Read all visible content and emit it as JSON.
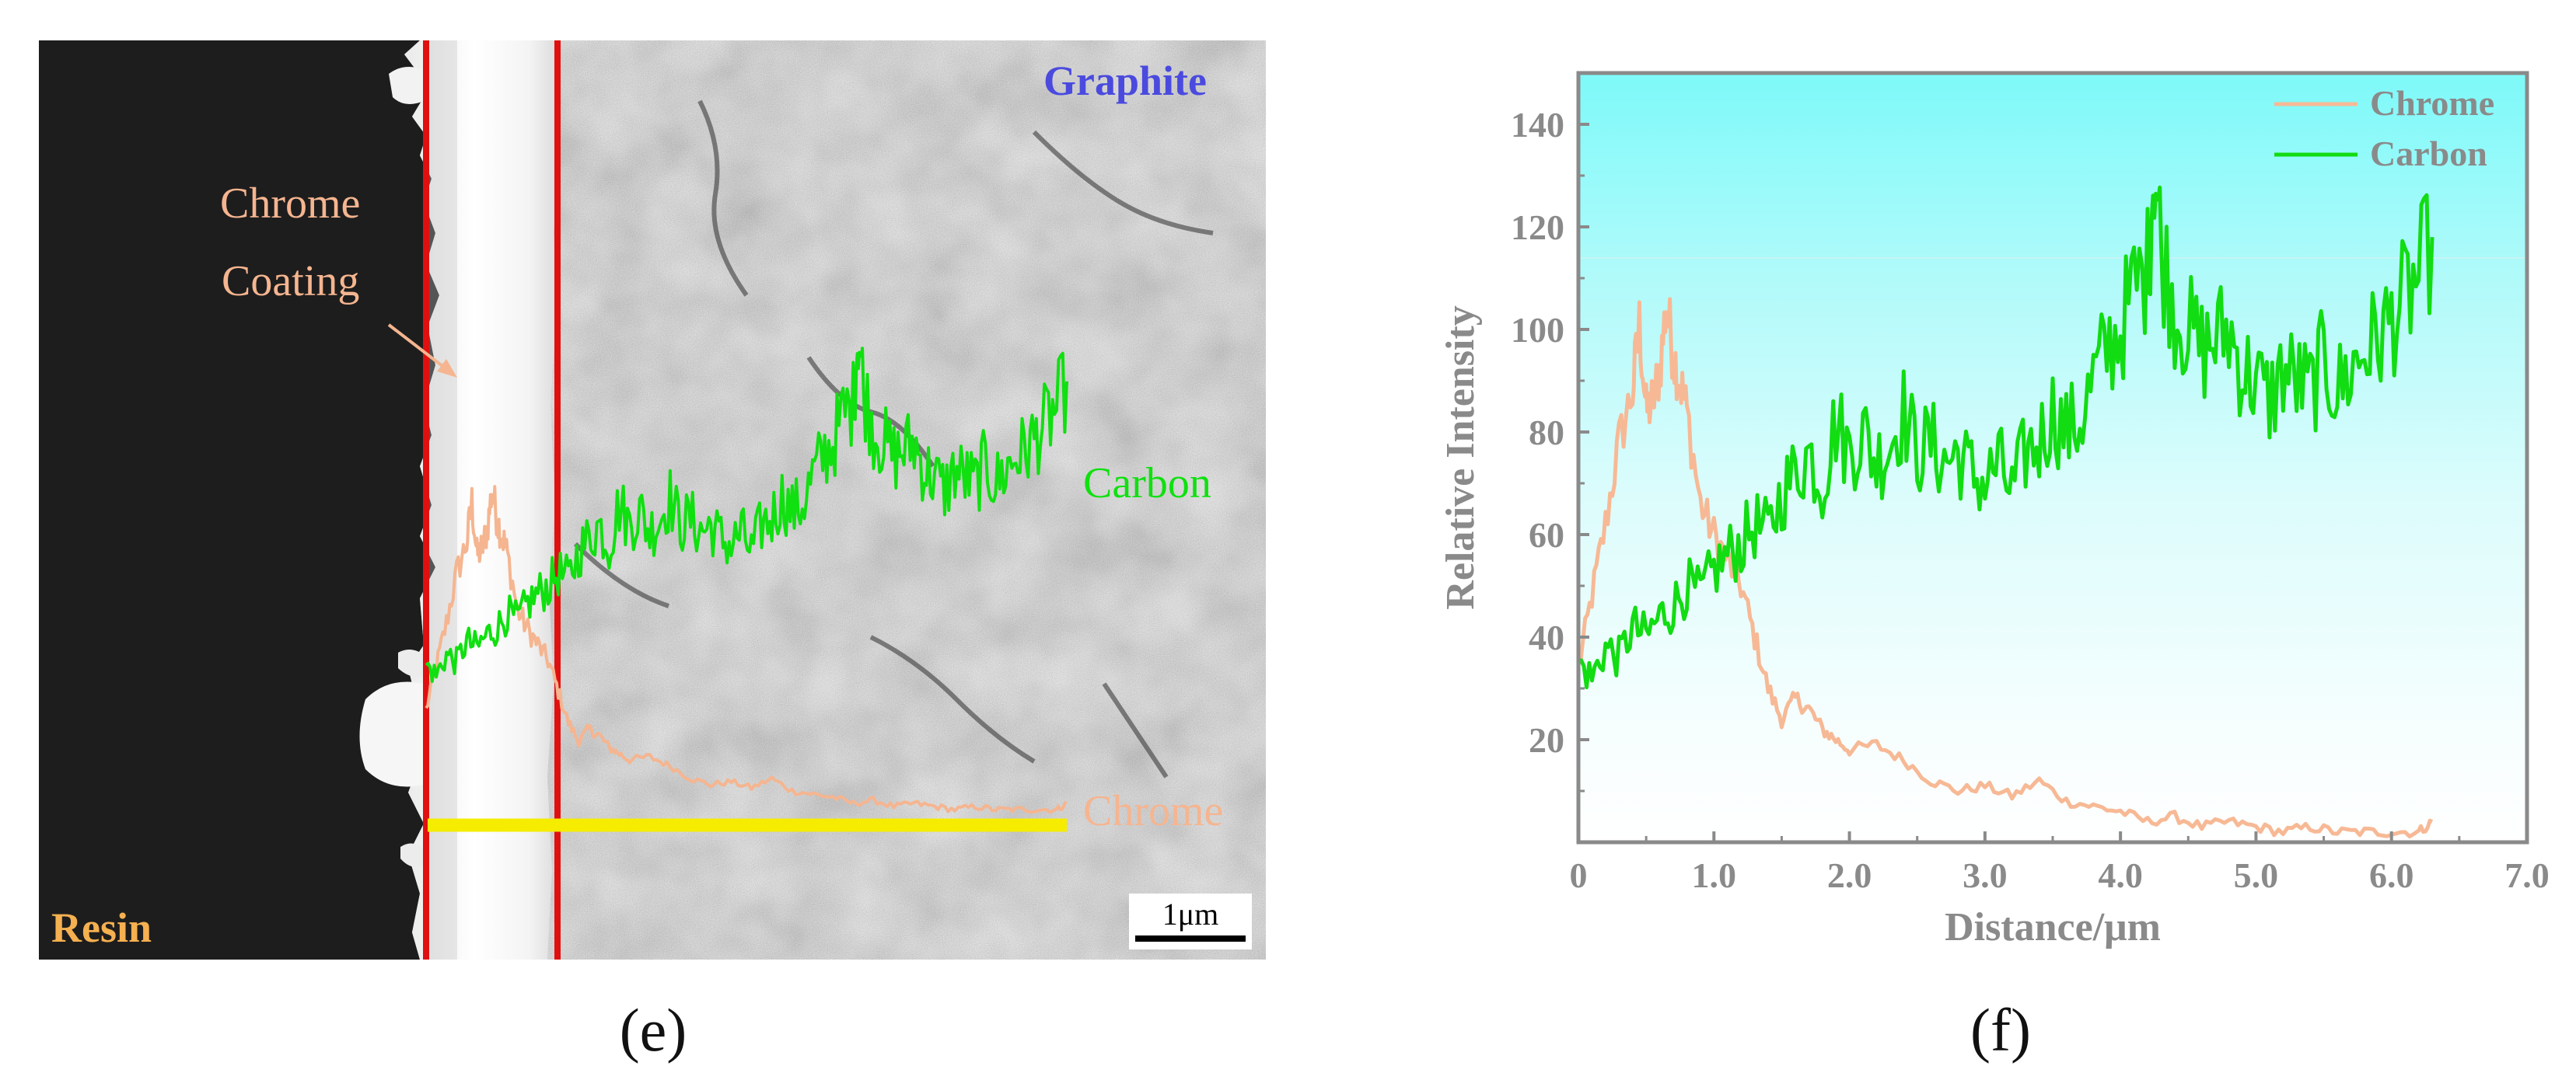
{
  "panel_e": {
    "caption": "(e)",
    "region_labels": {
      "resin": "Resin",
      "graphite": "Graphite",
      "chrome_coating_line1": "Chrome",
      "chrome_coating_line2": "Coating",
      "carbon_trace": "Carbon",
      "chrome_trace": "Chrome"
    },
    "scale_bar": "1μm",
    "colors": {
      "resin": "#1e1d1d",
      "boundary_lines": "#e01010",
      "scan_line": "#f5ec00",
      "chrome": "#f5b590",
      "carbon": "#10e010",
      "graphite_label": "#4a4adf",
      "resin_label": "#f5b050"
    }
  },
  "panel_f": {
    "caption": "(f)"
  },
  "chart_data": {
    "type": "line",
    "title": "",
    "xlabel": "Distance/μm",
    "ylabel": "Relative Intensity",
    "xlim": [
      0,
      7.0
    ],
    "ylim": [
      0,
      150
    ],
    "xticks": [
      0,
      1.0,
      2.0,
      3.0,
      4.0,
      5.0,
      6.0,
      7.0
    ],
    "xtick_labels": [
      "0",
      "1.0",
      "2.0",
      "3.0",
      "4.0",
      "5.0",
      "6.0",
      "7.0"
    ],
    "yticks": [
      20,
      40,
      60,
      80,
      100,
      120,
      140
    ],
    "ytick_labels": [
      "20",
      "40",
      "60",
      "80",
      "100",
      "120",
      "140"
    ],
    "grid": false,
    "legend_position": "top-right",
    "series": [
      {
        "name": "Chrome",
        "color": "#f7b995",
        "x": [
          0,
          0.1,
          0.2,
          0.3,
          0.4,
          0.45,
          0.5,
          0.55,
          0.6,
          0.65,
          0.7,
          0.75,
          0.8,
          0.9,
          1.0,
          1.1,
          1.2,
          1.3,
          1.4,
          1.5,
          1.6,
          1.7,
          1.8,
          1.9,
          2.0,
          2.2,
          2.4,
          2.6,
          2.8,
          3.0,
          3.2,
          3.4,
          3.6,
          3.8,
          4.0,
          4.2,
          4.4,
          4.6,
          4.8,
          5.0,
          5.2,
          5.4,
          5.6,
          5.8,
          6.0,
          6.2,
          6.3
        ],
        "values": [
          34,
          48,
          62,
          78,
          88,
          101,
          84,
          86,
          92,
          105,
          95,
          90,
          84,
          66,
          60,
          55,
          50,
          40,
          30,
          24,
          28,
          26,
          22,
          20,
          18,
          19,
          16,
          12,
          10,
          11,
          9,
          12,
          8,
          7,
          6,
          4,
          5,
          3,
          4,
          3,
          2,
          3,
          2,
          2,
          2,
          2,
          4
        ]
      },
      {
        "name": "Carbon",
        "color": "#12dc12",
        "x": [
          0,
          0.1,
          0.2,
          0.3,
          0.4,
          0.5,
          0.6,
          0.7,
          0.8,
          0.9,
          1.0,
          1.1,
          1.2,
          1.3,
          1.4,
          1.5,
          1.6,
          1.7,
          1.8,
          1.9,
          2.0,
          2.1,
          2.2,
          2.3,
          2.4,
          2.5,
          2.6,
          2.7,
          2.8,
          2.9,
          3.0,
          3.1,
          3.2,
          3.3,
          3.4,
          3.5,
          3.6,
          3.7,
          3.8,
          3.9,
          4.0,
          4.1,
          4.2,
          4.25,
          4.3,
          4.4,
          4.5,
          4.6,
          4.7,
          4.8,
          4.9,
          5.0,
          5.1,
          5.2,
          5.3,
          5.4,
          5.5,
          5.6,
          5.7,
          5.8,
          5.9,
          6.0,
          6.1,
          6.2,
          6.3
        ],
        "values": [
          35,
          32,
          38,
          36,
          42,
          40,
          44,
          46,
          50,
          48,
          53,
          56,
          58,
          62,
          60,
          68,
          72,
          76,
          70,
          82,
          76,
          80,
          74,
          78,
          84,
          76,
          78,
          74,
          76,
          72,
          70,
          74,
          68,
          76,
          78,
          84,
          80,
          82,
          90,
          96,
          100,
          108,
          112,
          134,
          116,
          104,
          100,
          96,
          98,
          100,
          92,
          90,
          86,
          92,
          90,
          88,
          94,
          88,
          92,
          96,
          98,
          102,
          106,
          110,
          118
        ]
      }
    ]
  }
}
